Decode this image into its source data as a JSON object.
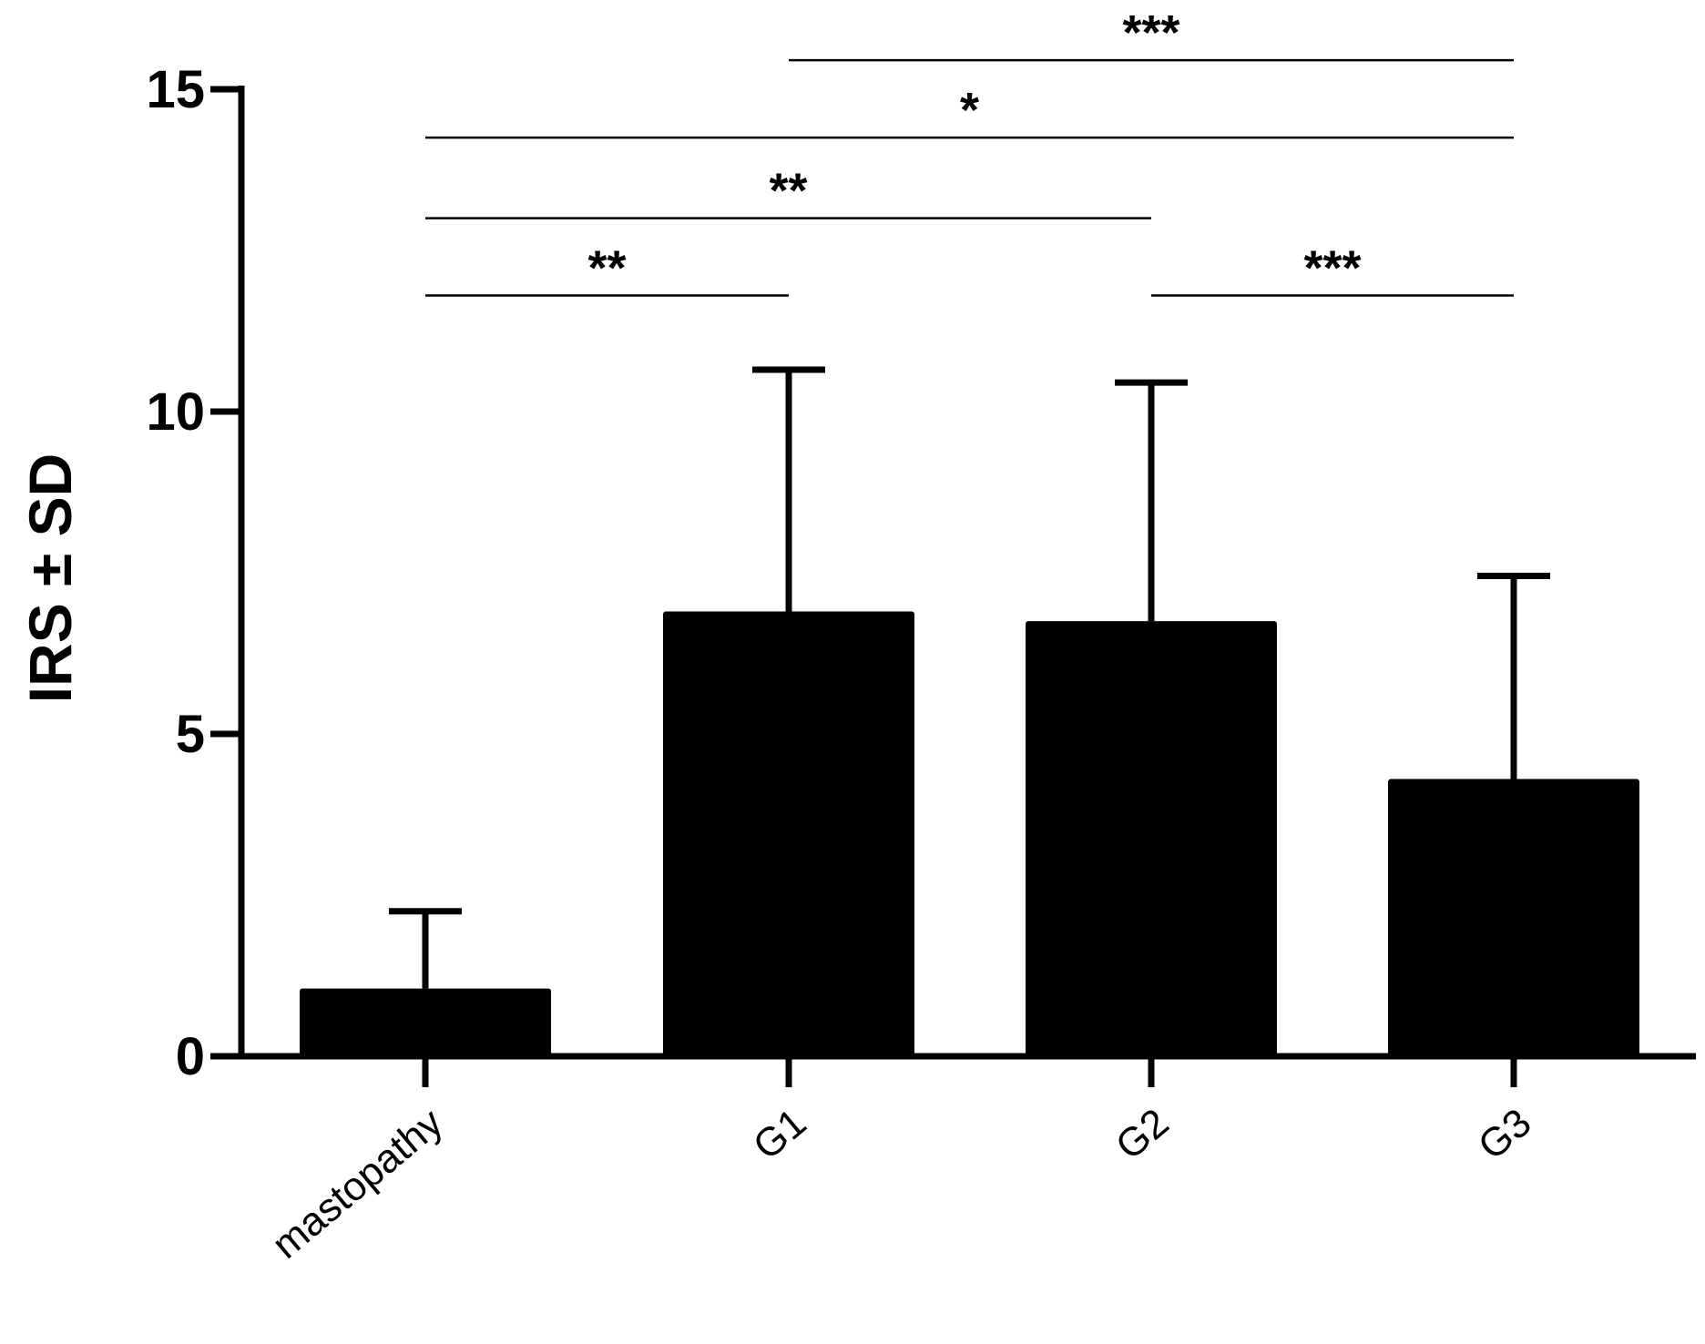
{
  "chart_data": {
    "type": "bar",
    "title": "",
    "xlabel": "",
    "ylabel": "IRS ± SD",
    "categories": [
      "mastopathy",
      "G1",
      "G2",
      "G3"
    ],
    "series": [
      {
        "values": [
          1.05,
          6.9,
          6.75,
          4.3
        ],
        "error_sd": [
          1.2,
          3.75,
          3.7,
          3.15
        ]
      }
    ],
    "ylim": [
      0,
      15
    ],
    "yticks": [
      0,
      5,
      10,
      15
    ],
    "grid": false,
    "legend": "none",
    "bar_color": "#000000",
    "significance": [
      {
        "from": "mastopathy",
        "to": "G1",
        "label": "**",
        "level": 11.8
      },
      {
        "from": "mastopathy",
        "to": "G2",
        "label": "**",
        "level": 13.0
      },
      {
        "from": "mastopathy",
        "to": "G3",
        "label": "*",
        "level": 14.25
      },
      {
        "from": "G1",
        "to": "G3",
        "label": "***",
        "level": 15.45
      },
      {
        "from": "G2",
        "to": "G3",
        "label": "***",
        "level": 11.8
      }
    ]
  }
}
